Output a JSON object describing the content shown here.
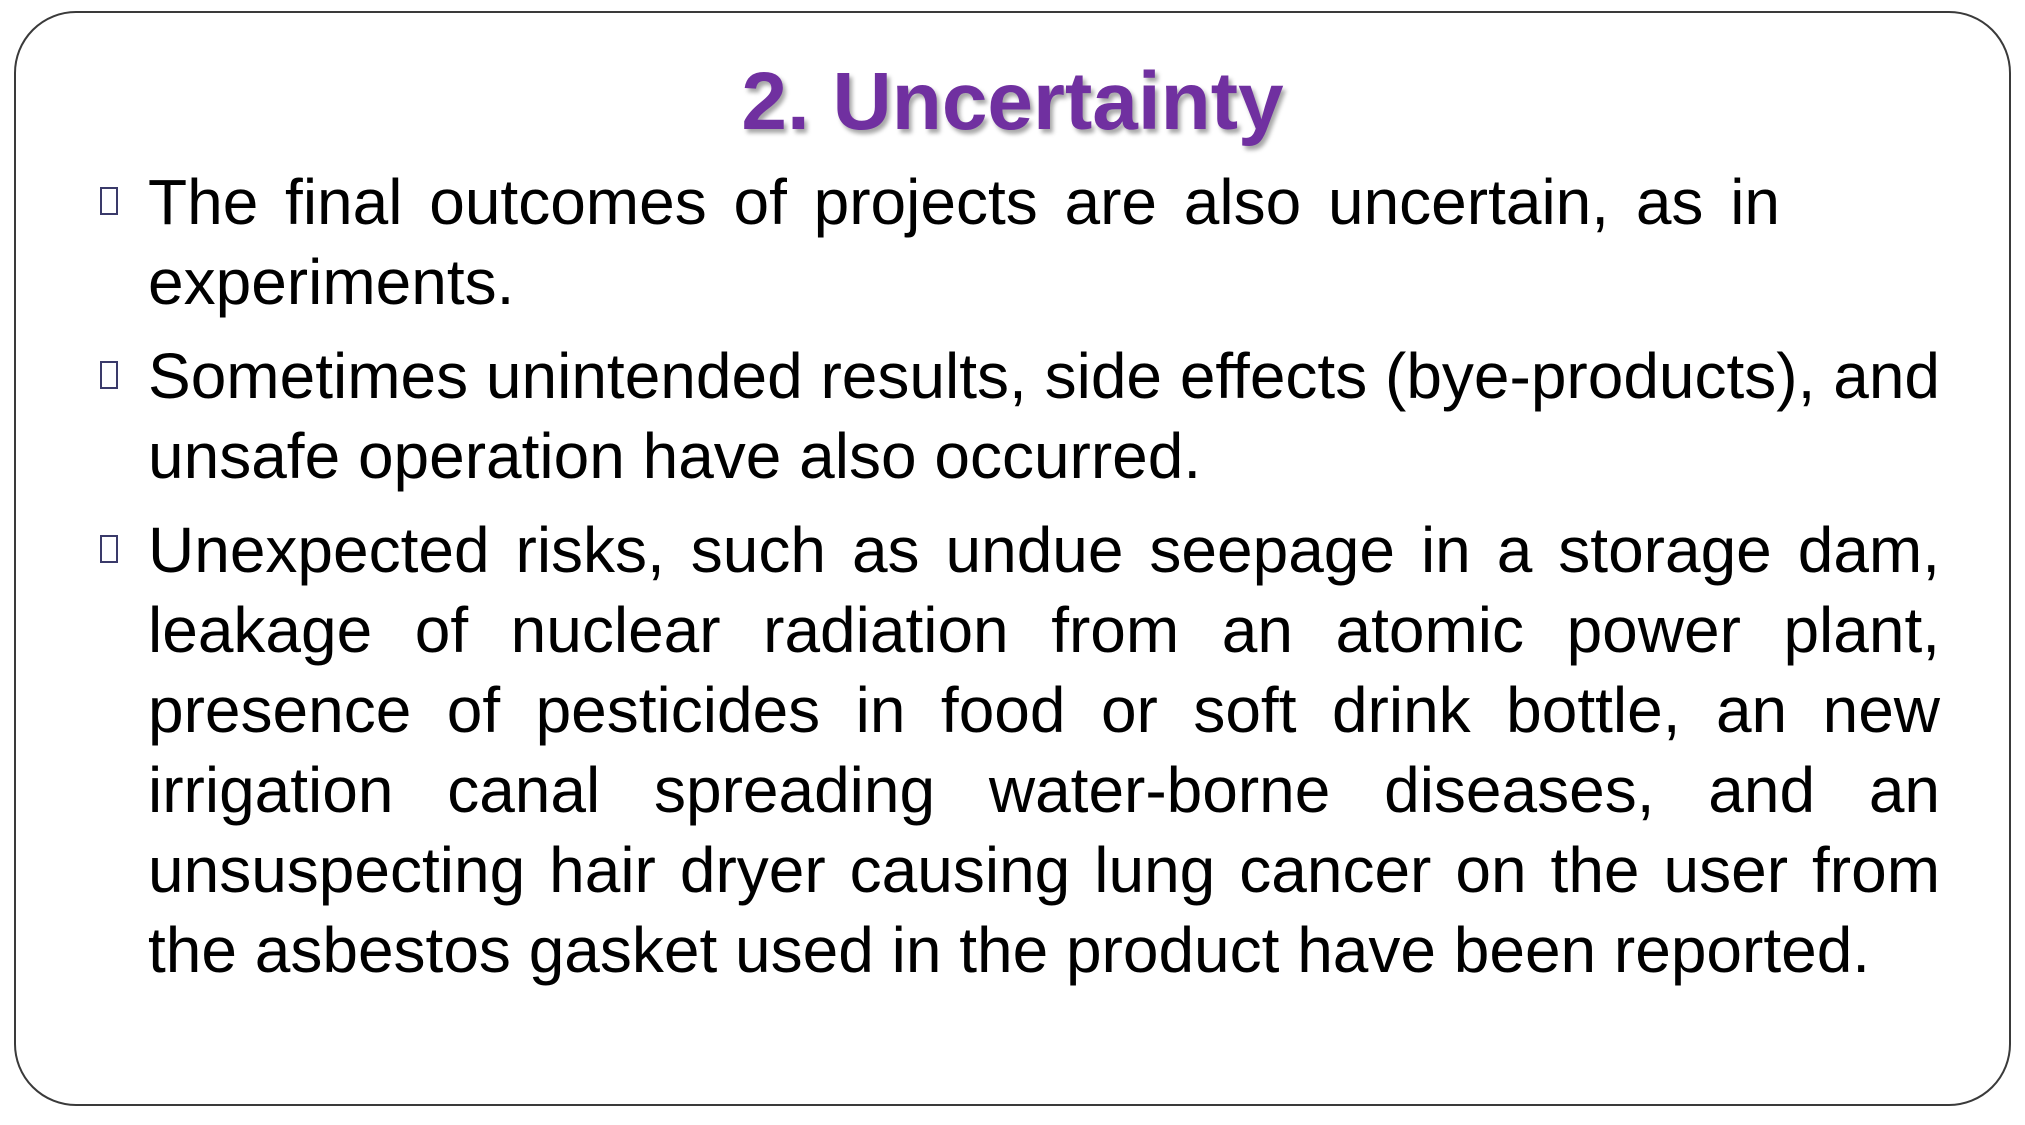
{
  "slide": {
    "title": "2. Uncertainty",
    "title_color": "#7030a0",
    "bullet_icon": "square-bullet-icon",
    "bullets": [
      {
        "text": "The final outcomes of projects are also uncertain, as in experiments."
      },
      {
        "text": "Sometimes unintended results, side effects (bye-products), and unsafe operation have also occurred."
      },
      {
        "text": "Unexpected risks, such as undue seepage in a storage dam, leakage of nuclear radiation from an atomic power plant, presence of pesticides in food or soft drink bottle, an new irrigation canal spreading water-borne diseases, and an unsuspecting hair dryer causing lung cancer on the user from the asbestos gasket used in the product have been reported."
      }
    ]
  }
}
